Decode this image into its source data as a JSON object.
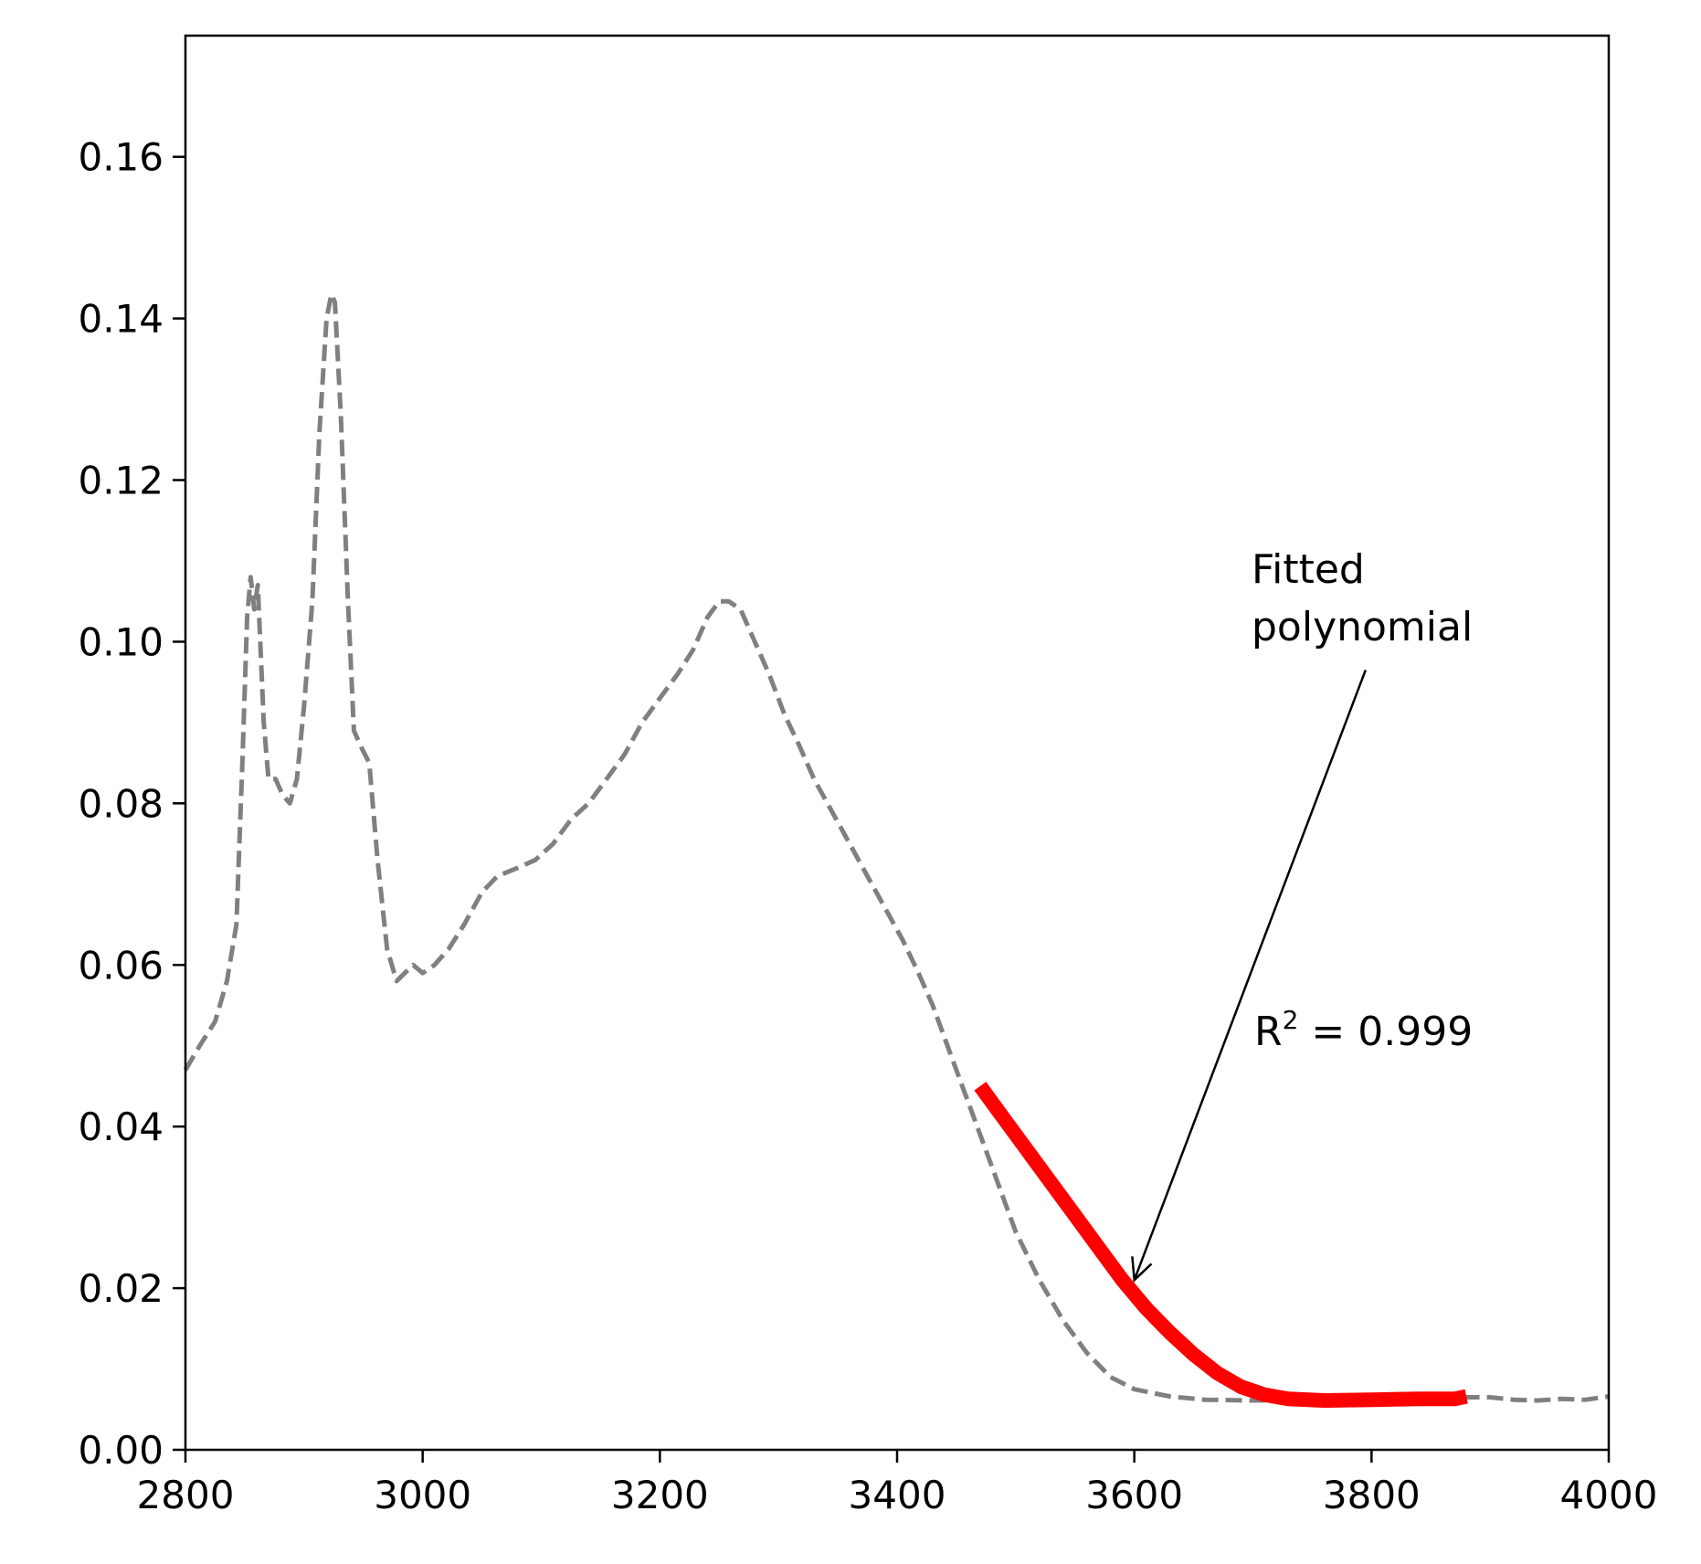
{
  "chart_data": {
    "type": "line",
    "title": "",
    "xlabel": "",
    "ylabel": "",
    "xlim": [
      2800,
      4000
    ],
    "ylim": [
      0,
      0.175
    ],
    "xticks": [
      "2800",
      "3000",
      "3200",
      "3400",
      "3600",
      "3800",
      "4000"
    ],
    "yticks": [
      "0.00",
      "0.02",
      "0.04",
      "0.06",
      "0.08",
      "0.10",
      "0.12",
      "0.14",
      "0.16"
    ],
    "grid": false,
    "legend": "none",
    "series": [
      {
        "style": "dashed",
        "color": "#808080",
        "points": [
          [
            2800,
            0.047
          ],
          [
            2812,
            0.05
          ],
          [
            2825,
            0.053
          ],
          [
            2835,
            0.058
          ],
          [
            2843,
            0.065
          ],
          [
            2848,
            0.085
          ],
          [
            2852,
            0.103
          ],
          [
            2855,
            0.108
          ],
          [
            2858,
            0.104
          ],
          [
            2861,
            0.107
          ],
          [
            2866,
            0.09
          ],
          [
            2870,
            0.083
          ],
          [
            2876,
            0.083
          ],
          [
            2882,
            0.081
          ],
          [
            2888,
            0.08
          ],
          [
            2894,
            0.083
          ],
          [
            2900,
            0.092
          ],
          [
            2907,
            0.105
          ],
          [
            2913,
            0.126
          ],
          [
            2919,
            0.14
          ],
          [
            2923,
            0.143
          ],
          [
            2926,
            0.142
          ],
          [
            2931,
            0.128
          ],
          [
            2937,
            0.105
          ],
          [
            2942,
            0.089
          ],
          [
            2948,
            0.087
          ],
          [
            2955,
            0.085
          ],
          [
            2962,
            0.073
          ],
          [
            2970,
            0.062
          ],
          [
            2978,
            0.058
          ],
          [
            2985,
            0.059
          ],
          [
            2992,
            0.06
          ],
          [
            3000,
            0.059
          ],
          [
            3010,
            0.06
          ],
          [
            3022,
            0.062
          ],
          [
            3035,
            0.065
          ],
          [
            3050,
            0.069
          ],
          [
            3063,
            0.071
          ],
          [
            3080,
            0.072
          ],
          [
            3095,
            0.073
          ],
          [
            3110,
            0.075
          ],
          [
            3125,
            0.078
          ],
          [
            3140,
            0.08
          ],
          [
            3155,
            0.083
          ],
          [
            3170,
            0.086
          ],
          [
            3185,
            0.09
          ],
          [
            3200,
            0.093
          ],
          [
            3215,
            0.096
          ],
          [
            3228,
            0.099
          ],
          [
            3240,
            0.103
          ],
          [
            3250,
            0.105
          ],
          [
            3258,
            0.105
          ],
          [
            3268,
            0.104
          ],
          [
            3280,
            0.1
          ],
          [
            3292,
            0.096
          ],
          [
            3305,
            0.091
          ],
          [
            3318,
            0.087
          ],
          [
            3330,
            0.083
          ],
          [
            3345,
            0.079
          ],
          [
            3360,
            0.075
          ],
          [
            3375,
            0.071
          ],
          [
            3390,
            0.067
          ],
          [
            3405,
            0.063
          ],
          [
            3418,
            0.059
          ],
          [
            3430,
            0.055
          ],
          [
            3440,
            0.051
          ],
          [
            3450,
            0.047
          ],
          [
            3460,
            0.043
          ],
          [
            3470,
            0.039
          ],
          [
            3480,
            0.035
          ],
          [
            3490,
            0.031
          ],
          [
            3500,
            0.027
          ],
          [
            3520,
            0.021
          ],
          [
            3540,
            0.016
          ],
          [
            3560,
            0.012
          ],
          [
            3580,
            0.009
          ],
          [
            3600,
            0.0075
          ],
          [
            3630,
            0.0066
          ],
          [
            3660,
            0.0062
          ],
          [
            3700,
            0.0061
          ],
          [
            3750,
            0.0062
          ],
          [
            3800,
            0.0064
          ],
          [
            3850,
            0.0065
          ],
          [
            3900,
            0.0065
          ],
          [
            3920,
            0.0062
          ],
          [
            3940,
            0.0061
          ],
          [
            3960,
            0.0063
          ],
          [
            3980,
            0.0062
          ],
          [
            4000,
            0.0066
          ]
        ]
      },
      {
        "style": "solid",
        "color": "#ff0000",
        "points": [
          [
            3470,
            0.045
          ],
          [
            3490,
            0.041
          ],
          [
            3510,
            0.037
          ],
          [
            3530,
            0.033
          ],
          [
            3550,
            0.029
          ],
          [
            3570,
            0.025
          ],
          [
            3590,
            0.021
          ],
          [
            3610,
            0.0175
          ],
          [
            3630,
            0.0145
          ],
          [
            3650,
            0.0118
          ],
          [
            3670,
            0.0095
          ],
          [
            3690,
            0.0078
          ],
          [
            3710,
            0.0068
          ],
          [
            3730,
            0.0063
          ],
          [
            3760,
            0.0061
          ],
          [
            3800,
            0.0062
          ],
          [
            3840,
            0.0063
          ],
          [
            3870,
            0.0063
          ],
          [
            3880,
            0.0066
          ]
        ]
      }
    ],
    "annotations": {
      "fitted_label_line1": "Fitted",
      "fitted_label_line2": "polynomial",
      "r2_prefix": "R",
      "r2_sup": "2",
      "r2_suffix": " = 0.999",
      "arrow_from": [
        3795,
        0.0965
      ],
      "arrow_to": [
        3600,
        0.021
      ]
    }
  }
}
